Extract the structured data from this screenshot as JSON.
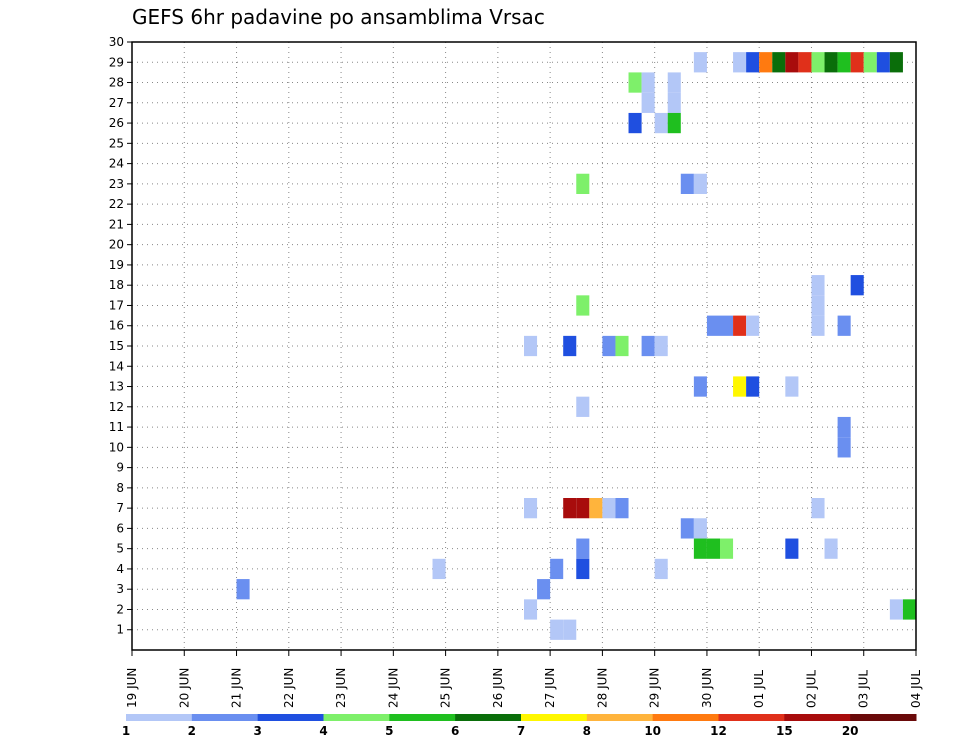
{
  "chart_data": {
    "type": "heatmap",
    "title": "GEFS 6hr padavine po ansamblima Vrsac",
    "xlabel": "",
    "ylabel": "",
    "x_axis": {
      "start_label": "19 JUN",
      "steps_per_day": 4,
      "n_steps": 60,
      "tick_labels": [
        "19 JUN",
        "20 JUN",
        "21 JUN",
        "22 JUN",
        "23 JUN",
        "24 JUN",
        "25 JUN",
        "26 JUN",
        "27 JUN",
        "28 JUN",
        "29 JUN",
        "30 JUN",
        "01 JUL",
        "02 JUL",
        "03 JUL",
        "04 JUL"
      ]
    },
    "y_axis": {
      "ylim": [
        0,
        30
      ],
      "ticks": [
        1,
        2,
        3,
        4,
        5,
        6,
        7,
        8,
        9,
        10,
        11,
        12,
        13,
        14,
        15,
        16,
        17,
        18,
        19,
        20,
        21,
        22,
        23,
        24,
        25,
        26,
        27,
        28,
        29,
        30
      ]
    },
    "grid": true,
    "colorbar": {
      "levels": [
        "1",
        "2",
        "3",
        "4",
        "5",
        "6",
        "7",
        "8",
        "10",
        "12",
        "15",
        "20"
      ],
      "colors": [
        "#b3c7f7",
        "#6a8ff0",
        "#1f4fe0",
        "#7ef06a",
        "#1fbf1f",
        "#0a6e0a",
        "#fff700",
        "#ffb43c",
        "#ff7a10",
        "#e0301a",
        "#a80c0c",
        "#6a0a0a"
      ]
    },
    "cells": [
      {
        "member": 29,
        "step": 44,
        "bin": 0
      },
      {
        "member": 29,
        "step": 47,
        "bin": 0
      },
      {
        "member": 29,
        "step": 48,
        "bin": 2
      },
      {
        "member": 29,
        "step": 49,
        "bin": 8
      },
      {
        "member": 29,
        "step": 50,
        "bin": 5
      },
      {
        "member": 29,
        "step": 51,
        "bin": 10
      },
      {
        "member": 29,
        "step": 52,
        "bin": 9
      },
      {
        "member": 29,
        "step": 53,
        "bin": 3
      },
      {
        "member": 29,
        "step": 54,
        "bin": 5
      },
      {
        "member": 29,
        "step": 55,
        "bin": 4
      },
      {
        "member": 29,
        "step": 56,
        "bin": 9
      },
      {
        "member": 29,
        "step": 57,
        "bin": 3
      },
      {
        "member": 29,
        "step": 58,
        "bin": 2
      },
      {
        "member": 29,
        "step": 59,
        "bin": 5
      },
      {
        "member": 28,
        "step": 39,
        "bin": 3
      },
      {
        "member": 28,
        "step": 40,
        "bin": 0
      },
      {
        "member": 28,
        "step": 42,
        "bin": 0
      },
      {
        "member": 27,
        "step": 40,
        "bin": 0
      },
      {
        "member": 27,
        "step": 42,
        "bin": 0
      },
      {
        "member": 26,
        "step": 39,
        "bin": 2
      },
      {
        "member": 26,
        "step": 41,
        "bin": 0
      },
      {
        "member": 26,
        "step": 42,
        "bin": 4
      },
      {
        "member": 23,
        "step": 35,
        "bin": 3
      },
      {
        "member": 23,
        "step": 43,
        "bin": 1
      },
      {
        "member": 23,
        "step": 44,
        "bin": 0
      },
      {
        "member": 18,
        "step": 53,
        "bin": 0
      },
      {
        "member": 18,
        "step": 56,
        "bin": 2
      },
      {
        "member": 17,
        "step": 35,
        "bin": 3
      },
      {
        "member": 17,
        "step": 53,
        "bin": 0
      },
      {
        "member": 16,
        "step": 45,
        "bin": 1
      },
      {
        "member": 16,
        "step": 46,
        "bin": 1
      },
      {
        "member": 16,
        "step": 47,
        "bin": 9
      },
      {
        "member": 16,
        "step": 48,
        "bin": 0
      },
      {
        "member": 16,
        "step": 53,
        "bin": 0
      },
      {
        "member": 16,
        "step": 55,
        "bin": 1
      },
      {
        "member": 15,
        "step": 31,
        "bin": 0
      },
      {
        "member": 15,
        "step": 34,
        "bin": 2
      },
      {
        "member": 15,
        "step": 37,
        "bin": 1
      },
      {
        "member": 15,
        "step": 38,
        "bin": 3
      },
      {
        "member": 15,
        "step": 40,
        "bin": 1
      },
      {
        "member": 15,
        "step": 41,
        "bin": 0
      },
      {
        "member": 13,
        "step": 44,
        "bin": 1
      },
      {
        "member": 13,
        "step": 47,
        "bin": 6
      },
      {
        "member": 13,
        "step": 48,
        "bin": 2
      },
      {
        "member": 13,
        "step": 51,
        "bin": 0
      },
      {
        "member": 12,
        "step": 35,
        "bin": 0
      },
      {
        "member": 11,
        "step": 55,
        "bin": 1
      },
      {
        "member": 10,
        "step": 55,
        "bin": 1
      },
      {
        "member": 7,
        "step": 31,
        "bin": 0
      },
      {
        "member": 7,
        "step": 34,
        "bin": 10
      },
      {
        "member": 7,
        "step": 35,
        "bin": 10
      },
      {
        "member": 7,
        "step": 36,
        "bin": 7
      },
      {
        "member": 7,
        "step": 37,
        "bin": 0
      },
      {
        "member": 7,
        "step": 38,
        "bin": 1
      },
      {
        "member": 7,
        "step": 53,
        "bin": 0
      },
      {
        "member": 6,
        "step": 43,
        "bin": 1
      },
      {
        "member": 6,
        "step": 44,
        "bin": 0
      },
      {
        "member": 5,
        "step": 35,
        "bin": 1
      },
      {
        "member": 5,
        "step": 44,
        "bin": 4
      },
      {
        "member": 5,
        "step": 45,
        "bin": 4
      },
      {
        "member": 5,
        "step": 46,
        "bin": 3
      },
      {
        "member": 5,
        "step": 51,
        "bin": 2
      },
      {
        "member": 5,
        "step": 54,
        "bin": 0
      },
      {
        "member": 4,
        "step": 24,
        "bin": 0
      },
      {
        "member": 4,
        "step": 33,
        "bin": 1
      },
      {
        "member": 4,
        "step": 35,
        "bin": 2
      },
      {
        "member": 4,
        "step": 41,
        "bin": 0
      },
      {
        "member": 3,
        "step": 9,
        "bin": 1
      },
      {
        "member": 3,
        "step": 32,
        "bin": 1
      },
      {
        "member": 2,
        "step": 31,
        "bin": 0
      },
      {
        "member": 2,
        "step": 59,
        "bin": 0
      },
      {
        "member": 2,
        "step": 60,
        "bin": 4
      },
      {
        "member": 1,
        "step": 33,
        "bin": 0
      },
      {
        "member": 1,
        "step": 34,
        "bin": 0
      }
    ]
  }
}
